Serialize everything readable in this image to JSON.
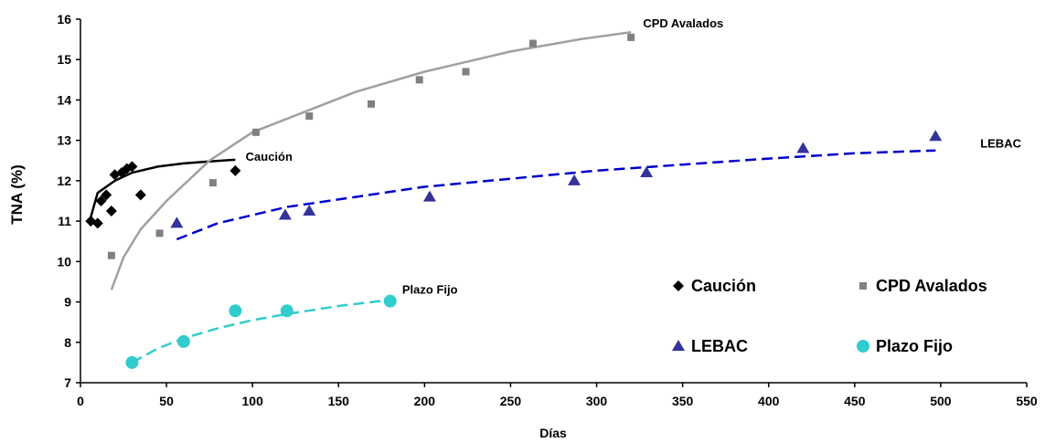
{
  "chart_data": {
    "type": "scatter",
    "xlabel": "Días",
    "ylabel": "TNA (%)",
    "xlim": [
      0,
      550
    ],
    "ylim": [
      7,
      16
    ],
    "xticks": [
      0,
      50,
      100,
      150,
      200,
      250,
      300,
      350,
      400,
      450,
      500,
      550
    ],
    "yticks": [
      7,
      8,
      9,
      10,
      11,
      12,
      13,
      14,
      15,
      16
    ],
    "grid": false,
    "legend": {
      "position": "bottom-right",
      "entries": [
        "Caución",
        "CPD Avalados",
        "LEBAC",
        "Plazo Fijo"
      ]
    },
    "series": [
      {
        "name": "Caución",
        "marker": "diamond",
        "color": "#000000",
        "points": [
          [
            6,
            11.0
          ],
          [
            10,
            10.95
          ],
          [
            12,
            11.5
          ],
          [
            15,
            11.65
          ],
          [
            18,
            11.25
          ],
          [
            20,
            12.15
          ],
          [
            24,
            12.2
          ],
          [
            27,
            12.3
          ],
          [
            30,
            12.35
          ],
          [
            35,
            11.65
          ],
          [
            90,
            12.25
          ]
        ],
        "trend": {
          "style": "solid",
          "color": "#000000",
          "x_range": [
            5,
            90
          ],
          "points": [
            [
              5,
              10.95
            ],
            [
              10,
              11.7
            ],
            [
              20,
              12.0
            ],
            [
              30,
              12.2
            ],
            [
              45,
              12.35
            ],
            [
              60,
              12.43
            ],
            [
              75,
              12.48
            ],
            [
              90,
              12.52
            ]
          ]
        }
      },
      {
        "name": "CPD Avalados",
        "marker": "square",
        "color": "#808080",
        "points": [
          [
            18,
            10.15
          ],
          [
            46,
            10.7
          ],
          [
            77,
            11.95
          ],
          [
            102,
            13.2
          ],
          [
            133,
            13.6
          ],
          [
            169,
            13.9
          ],
          [
            197,
            14.5
          ],
          [
            224,
            14.7
          ],
          [
            263,
            15.4
          ],
          [
            320,
            15.55
          ]
        ],
        "trend": {
          "style": "solid",
          "color": "#a0a0a0",
          "x_range": [
            18,
            320
          ],
          "points": [
            [
              18,
              9.3
            ],
            [
              25,
              10.1
            ],
            [
              35,
              10.8
            ],
            [
              50,
              11.5
            ],
            [
              75,
              12.5
            ],
            [
              100,
              13.2
            ],
            [
              130,
              13.7
            ],
            [
              160,
              14.2
            ],
            [
              200,
              14.7
            ],
            [
              250,
              15.2
            ],
            [
              290,
              15.5
            ],
            [
              320,
              15.68
            ]
          ]
        }
      },
      {
        "name": "LEBAC",
        "marker": "triangle",
        "color": "#333399",
        "points": [
          [
            56,
            10.95
          ],
          [
            119,
            11.15
          ],
          [
            133,
            11.25
          ],
          [
            203,
            11.6
          ],
          [
            287,
            12.0
          ],
          [
            329,
            12.2
          ],
          [
            420,
            12.8
          ],
          [
            497,
            13.1
          ]
        ],
        "trend": {
          "style": "dashed",
          "color": "#0000cc",
          "x_range": [
            56,
            497
          ],
          "points": [
            [
              56,
              10.55
            ],
            [
              80,
              10.95
            ],
            [
              120,
              11.35
            ],
            [
              160,
              11.6
            ],
            [
              200,
              11.85
            ],
            [
              250,
              12.05
            ],
            [
              300,
              12.25
            ],
            [
              350,
              12.4
            ],
            [
              400,
              12.55
            ],
            [
              450,
              12.68
            ],
            [
              497,
              12.75
            ]
          ]
        }
      },
      {
        "name": "Plazo Fijo",
        "marker": "circle",
        "color": "#33cccc",
        "points": [
          [
            30,
            7.5
          ],
          [
            60,
            8.02
          ],
          [
            90,
            8.78
          ],
          [
            120,
            8.78
          ],
          [
            180,
            9.02
          ]
        ],
        "trend": {
          "style": "dashed",
          "color": "#33cccc",
          "x_range": [
            30,
            180
          ],
          "points": [
            [
              30,
              7.5
            ],
            [
              45,
              7.85
            ],
            [
              60,
              8.1
            ],
            [
              80,
              8.35
            ],
            [
              100,
              8.55
            ],
            [
              120,
              8.7
            ],
            [
              150,
              8.9
            ],
            [
              180,
              9.05
            ]
          ]
        }
      }
    ],
    "annotations": [
      {
        "text": "CPD Avalados",
        "x": 327,
        "y": 15.8
      },
      {
        "text": "Caución",
        "x": 96,
        "y": 12.5
      },
      {
        "text": "LEBAC",
        "x": 523,
        "y": 12.82
      },
      {
        "text": "Plazo Fijo",
        "x": 187,
        "y": 9.2
      }
    ]
  }
}
